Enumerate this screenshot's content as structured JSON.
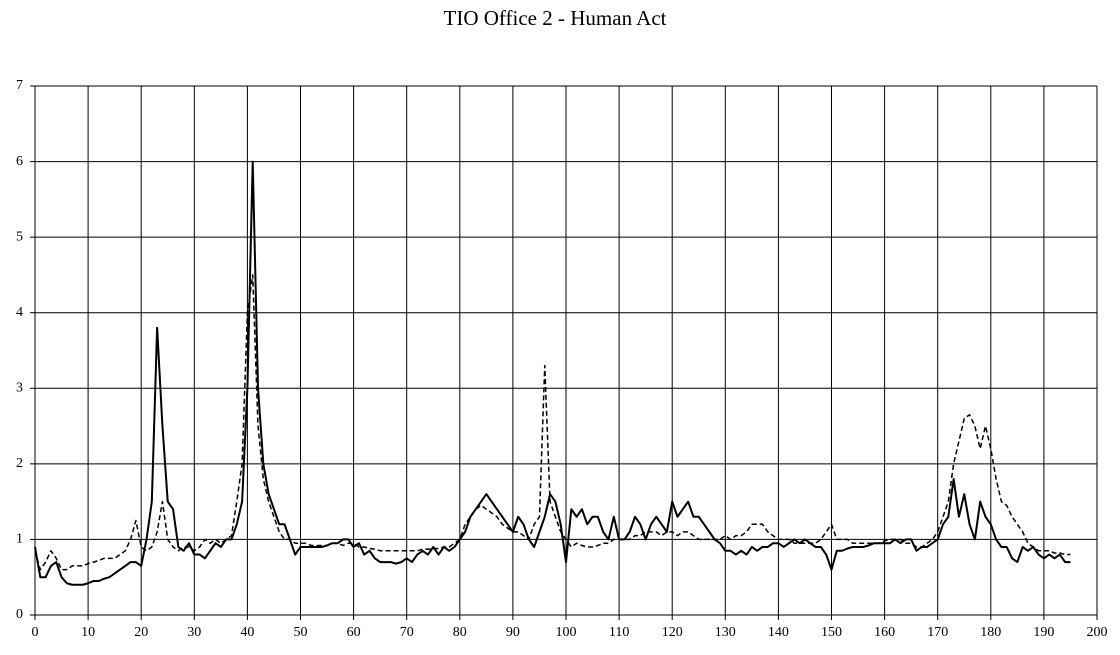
{
  "chart_data": {
    "type": "line",
    "title": "TIO Office 2 - Human Act",
    "x": [
      0,
      1,
      2,
      3,
      4,
      5,
      6,
      7,
      8,
      9,
      10,
      11,
      12,
      13,
      14,
      15,
      16,
      17,
      18,
      19,
      20,
      21,
      22,
      23,
      24,
      25,
      26,
      27,
      28,
      29,
      30,
      31,
      32,
      33,
      34,
      35,
      36,
      37,
      38,
      39,
      40,
      41,
      42,
      43,
      44,
      45,
      46,
      47,
      48,
      49,
      50,
      51,
      52,
      53,
      54,
      55,
      56,
      57,
      58,
      59,
      60,
      61,
      62,
      63,
      64,
      65,
      66,
      67,
      68,
      69,
      70,
      71,
      72,
      73,
      74,
      75,
      76,
      77,
      78,
      79,
      80,
      81,
      82,
      83,
      84,
      85,
      86,
      87,
      88,
      89,
      90,
      91,
      92,
      93,
      94,
      95,
      96,
      97,
      98,
      99,
      100,
      101,
      102,
      103,
      104,
      105,
      106,
      107,
      108,
      109,
      110,
      111,
      112,
      113,
      114,
      115,
      116,
      117,
      118,
      119,
      120,
      121,
      122,
      123,
      124,
      125,
      126,
      127,
      128,
      129,
      130,
      131,
      132,
      133,
      134,
      135,
      136,
      137,
      138,
      139,
      140,
      141,
      142,
      143,
      144,
      145,
      146,
      147,
      148,
      149,
      150,
      151,
      152,
      153,
      154,
      155,
      156,
      157,
      158,
      159,
      160,
      161,
      162,
      163,
      164,
      165,
      166,
      167,
      168,
      169,
      170,
      171,
      172,
      173,
      174,
      175,
      176,
      177,
      178,
      179,
      180,
      181,
      182,
      183,
      184,
      185,
      186,
      187,
      188,
      189,
      190,
      191,
      192,
      193,
      194,
      195
    ],
    "series": [
      {
        "color": "#000000",
        "line_style": "solid",
        "values": [
          0.9,
          0.5,
          0.5,
          0.65,
          0.7,
          0.5,
          0.42,
          0.4,
          0.4,
          0.4,
          0.42,
          0.45,
          0.45,
          0.48,
          0.5,
          0.55,
          0.6,
          0.65,
          0.7,
          0.7,
          0.65,
          1.0,
          1.5,
          3.8,
          2.5,
          1.5,
          1.4,
          0.9,
          0.85,
          0.95,
          0.8,
          0.8,
          0.75,
          0.85,
          0.95,
          0.9,
          1.0,
          1.0,
          1.2,
          1.5,
          3.0,
          6.0,
          3.0,
          2.0,
          1.6,
          1.4,
          1.2,
          1.2,
          1.0,
          0.8,
          0.9,
          0.9,
          0.9,
          0.9,
          0.9,
          0.92,
          0.95,
          0.95,
          1.0,
          1.0,
          0.9,
          0.95,
          0.8,
          0.85,
          0.75,
          0.7,
          0.7,
          0.7,
          0.68,
          0.7,
          0.75,
          0.7,
          0.8,
          0.85,
          0.8,
          0.9,
          0.8,
          0.9,
          0.85,
          0.9,
          1.0,
          1.1,
          1.3,
          1.4,
          1.5,
          1.6,
          1.5,
          1.4,
          1.3,
          1.2,
          1.1,
          1.3,
          1.2,
          1.0,
          0.9,
          1.1,
          1.3,
          1.6,
          1.5,
          1.2,
          0.7,
          1.4,
          1.3,
          1.4,
          1.2,
          1.3,
          1.3,
          1.1,
          1.0,
          1.3,
          1.0,
          1.0,
          1.1,
          1.3,
          1.2,
          1.0,
          1.2,
          1.3,
          1.2,
          1.1,
          1.5,
          1.3,
          1.4,
          1.5,
          1.3,
          1.3,
          1.2,
          1.1,
          1.0,
          0.95,
          0.85,
          0.85,
          0.8,
          0.85,
          0.8,
          0.9,
          0.85,
          0.9,
          0.9,
          0.95,
          0.95,
          0.9,
          0.95,
          1.0,
          0.95,
          1.0,
          0.95,
          0.9,
          0.9,
          0.8,
          0.6,
          0.85,
          0.85,
          0.88,
          0.9,
          0.9,
          0.9,
          0.92,
          0.95,
          0.95,
          0.95,
          0.95,
          1.0,
          0.95,
          1.0,
          1.0,
          0.85,
          0.9,
          0.9,
          0.95,
          1.0,
          1.2,
          1.3,
          1.8,
          1.3,
          1.6,
          1.2,
          1.0,
          1.5,
          1.3,
          1.2,
          1.0,
          0.9,
          0.9,
          0.75,
          0.7,
          0.9,
          0.85,
          0.9,
          0.8,
          0.75,
          0.8,
          0.75,
          0.8,
          0.7,
          0.7
        ]
      },
      {
        "color": "#000000",
        "line_style": "dashed",
        "values": [
          0.85,
          0.6,
          0.7,
          0.85,
          0.75,
          0.6,
          0.6,
          0.65,
          0.65,
          0.65,
          0.68,
          0.7,
          0.72,
          0.75,
          0.75,
          0.75,
          0.8,
          0.85,
          1.0,
          1.25,
          0.9,
          0.85,
          0.9,
          1.1,
          1.5,
          1.0,
          0.9,
          0.85,
          0.9,
          0.9,
          0.85,
          0.9,
          1.0,
          0.95,
          1.0,
          0.95,
          1.0,
          1.05,
          1.5,
          2.0,
          4.0,
          4.5,
          2.5,
          1.8,
          1.5,
          1.3,
          1.1,
          1.0,
          1.0,
          0.95,
          0.95,
          0.95,
          0.92,
          0.92,
          0.92,
          0.92,
          0.95,
          0.95,
          0.92,
          0.95,
          0.95,
          0.9,
          0.9,
          0.88,
          0.87,
          0.85,
          0.85,
          0.85,
          0.85,
          0.85,
          0.85,
          0.85,
          0.85,
          0.87,
          0.87,
          0.88,
          0.88,
          0.9,
          0.9,
          0.95,
          1.0,
          1.2,
          1.3,
          1.4,
          1.45,
          1.4,
          1.35,
          1.3,
          1.2,
          1.15,
          1.1,
          1.1,
          1.05,
          1.0,
          1.2,
          1.3,
          3.3,
          1.5,
          1.3,
          1.1,
          1.0,
          0.9,
          0.95,
          0.92,
          0.9,
          0.9,
          0.92,
          0.95,
          0.95,
          1.0,
          1.0,
          1.0,
          1.0,
          1.05,
          1.05,
          1.1,
          1.1,
          1.1,
          1.05,
          1.1,
          1.1,
          1.05,
          1.1,
          1.1,
          1.05,
          1.0,
          1.0,
          1.0,
          1.0,
          1.0,
          1.05,
          1.0,
          1.05,
          1.05,
          1.1,
          1.2,
          1.2,
          1.2,
          1.1,
          1.05,
          1.0,
          1.0,
          1.0,
          0.95,
          0.95,
          0.95,
          0.95,
          0.95,
          1.0,
          1.1,
          1.2,
          1.0,
          1.0,
          1.0,
          0.95,
          0.95,
          0.95,
          0.95,
          0.95,
          0.95,
          0.98,
          1.0,
          1.0,
          1.0,
          0.95,
          0.95,
          0.9,
          0.9,
          0.95,
          1.0,
          1.1,
          1.3,
          1.5,
          2.0,
          2.3,
          2.6,
          2.65,
          2.5,
          2.2,
          2.5,
          2.2,
          1.8,
          1.5,
          1.45,
          1.3,
          1.2,
          1.1,
          0.95,
          0.9,
          0.85,
          0.85,
          0.85,
          0.82,
          0.82,
          0.8,
          0.8
        ]
      }
    ],
    "xlim": [
      0,
      200
    ],
    "xticks": [
      0,
      10,
      20,
      30,
      40,
      50,
      60,
      70,
      80,
      90,
      100,
      110,
      120,
      130,
      140,
      150,
      160,
      170,
      180,
      190,
      200
    ],
    "ylim": [
      0,
      7
    ],
    "yticks": [
      0,
      1,
      2,
      3,
      4,
      5,
      6,
      7
    ],
    "grid": true
  }
}
